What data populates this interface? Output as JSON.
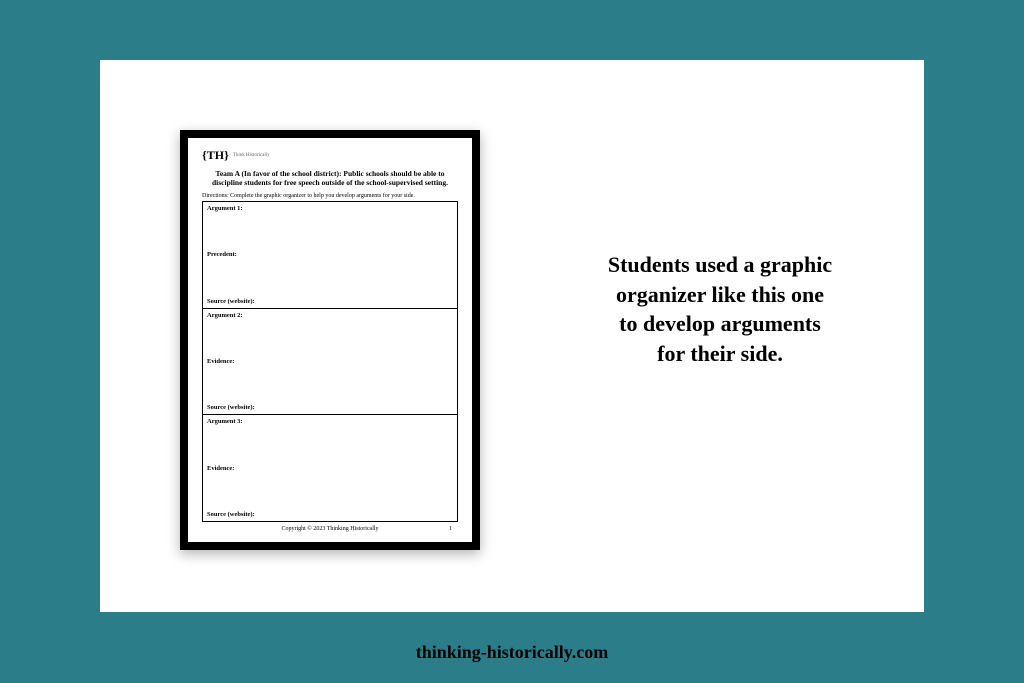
{
  "background_color": "#2b7d8a",
  "panel_color": "#ffffff",
  "frame_color": "#000000",
  "worksheet": {
    "logo_mark": "{TH}",
    "logo_sub": "Think Historically",
    "title": "Team A (In favor of the school district): Public schools should be able to discipline students for free speech outside of the school-supervised setting.",
    "directions": "Directions: Complete the graphic organizer to help you develop arguments for your side.",
    "sections": [
      {
        "arg": "Argument 1:",
        "mid": "Precedent:",
        "src": "Source (website):"
      },
      {
        "arg": "Argument 2:",
        "mid": "Evidence:",
        "src": "Source (website):"
      },
      {
        "arg": "Argument 3:",
        "mid": "Evidence:",
        "src": "Source (website):"
      }
    ],
    "copyright": "Copyright © 2023 Thinking Historically",
    "page_number": "1"
  },
  "caption": {
    "line1": "Students used a graphic",
    "line2": "organizer like this one",
    "line3": "to develop arguments",
    "line4": "for their side."
  },
  "url": "thinking-historically.com"
}
